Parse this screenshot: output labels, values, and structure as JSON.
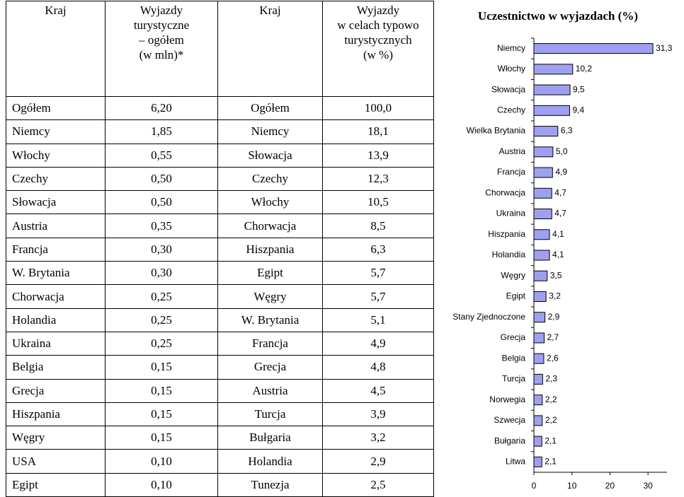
{
  "table": {
    "header": [
      "Kraj",
      "Wyjazdy\nturystyczne\n– ogółem\n(w mln)*",
      "Kraj",
      "Wyjazdy\nw celach typowo\nturystycznych\n(w %)"
    ],
    "rows": [
      [
        "Ogółem",
        "6,20",
        "Ogółem",
        "100,0"
      ],
      [
        "Niemcy",
        "1,85",
        "Niemcy",
        "18,1"
      ],
      [
        "Włochy",
        "0,55",
        "Słowacja",
        "13,9"
      ],
      [
        "Czechy",
        "0,50",
        "Czechy",
        "12,3"
      ],
      [
        "Słowacja",
        "0,50",
        "Włochy",
        "10,5"
      ],
      [
        "Austria",
        "0,35",
        "Chorwacja",
        "8,5"
      ],
      [
        "Francja",
        "0,30",
        "Hiszpania",
        "6,3"
      ],
      [
        "W. Brytania",
        "0,30",
        "Egipt",
        "5,7"
      ],
      [
        "Chorwacja",
        "0,25",
        "Węgry",
        "5,7"
      ],
      [
        "Holandia",
        "0,25",
        "W. Brytania",
        "5,1"
      ],
      [
        "Ukraina",
        "0,25",
        "Francja",
        "4,9"
      ],
      [
        "Belgia",
        "0,15",
        "Grecja",
        "4,8"
      ],
      [
        "Grecja",
        "0,15",
        "Austria",
        "4,5"
      ],
      [
        "Hiszpania",
        "0,15",
        "Turcja",
        "3,9"
      ],
      [
        "Węgry",
        "0,15",
        "Bułgaria",
        "3,2"
      ],
      [
        "USA",
        "0,10",
        "Holandia",
        "2,9"
      ],
      [
        "Egipt",
        "0,10",
        "Tunezja",
        "2,5"
      ]
    ]
  },
  "chart_data": {
    "type": "hbar",
    "title": "Uczestnictwo w wyjazdach (%)",
    "categories": [
      "Niemcy",
      "Włochy",
      "Słowacja",
      "Czechy",
      "Wielka Brytania",
      "Austria",
      "Francja",
      "Chorwacja",
      "Ukraina",
      "Hiszpania",
      "Holandia",
      "Węgry",
      "Egipt",
      "Stany Zjednoczone",
      "Grecja",
      "Belgia",
      "Turcja",
      "Norwegia",
      "Szwecja",
      "Bułgaria",
      "Litwa"
    ],
    "values": [
      31.3,
      10.2,
      9.5,
      9.4,
      6.3,
      5.0,
      4.9,
      4.7,
      4.7,
      4.1,
      4.1,
      3.5,
      3.2,
      2.9,
      2.7,
      2.6,
      2.3,
      2.2,
      2.2,
      2.1,
      2.1
    ],
    "value_labels": [
      "31,3",
      "10,2",
      "9,5",
      "9,4",
      "6,3",
      "5,0",
      "4,9",
      "4,7",
      "4,7",
      "4,1",
      "4,1",
      "3,5",
      "3,2",
      "2,9",
      "2,7",
      "2,6",
      "2,3",
      "2,2",
      "2,2",
      "2,1",
      "2,1"
    ],
    "color": "#9f9ff2",
    "xlim": [
      0,
      35
    ],
    "xticks": [
      0,
      10,
      20,
      30
    ]
  }
}
